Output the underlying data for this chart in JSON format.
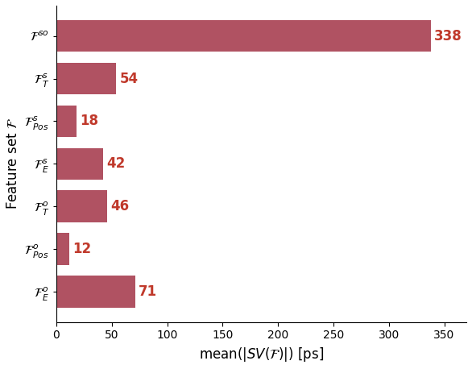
{
  "categories": [
    "$\\mathcal{F}^{so}$",
    "$\\mathcal{F}^{s}_{T}$",
    "$\\mathcal{F}^{s}_{Pos}$",
    "$\\mathcal{F}^{s}_{E}$",
    "$\\mathcal{F}^{o}_{T}$",
    "$\\mathcal{F}^{o}_{Pos}$",
    "$\\mathcal{F}^{o}_{E}$"
  ],
  "values": [
    338,
    54,
    18,
    42,
    46,
    12,
    71
  ],
  "bar_color": "#b05262",
  "value_color": "#c0392b",
  "xlabel": "mean(|SV($\\mathcal{F}$)|) [ps]",
  "ylabel": "Feature set $\\mathcal{F}$",
  "xlim": [
    0,
    370
  ],
  "xticks": [
    0,
    50,
    100,
    150,
    200,
    250,
    300,
    350
  ],
  "value_fontsize": 12,
  "label_fontsize": 11,
  "tick_fontsize": 10,
  "figsize": [
    5.86,
    4.58
  ],
  "dpi": 100,
  "bar_height": 0.75
}
